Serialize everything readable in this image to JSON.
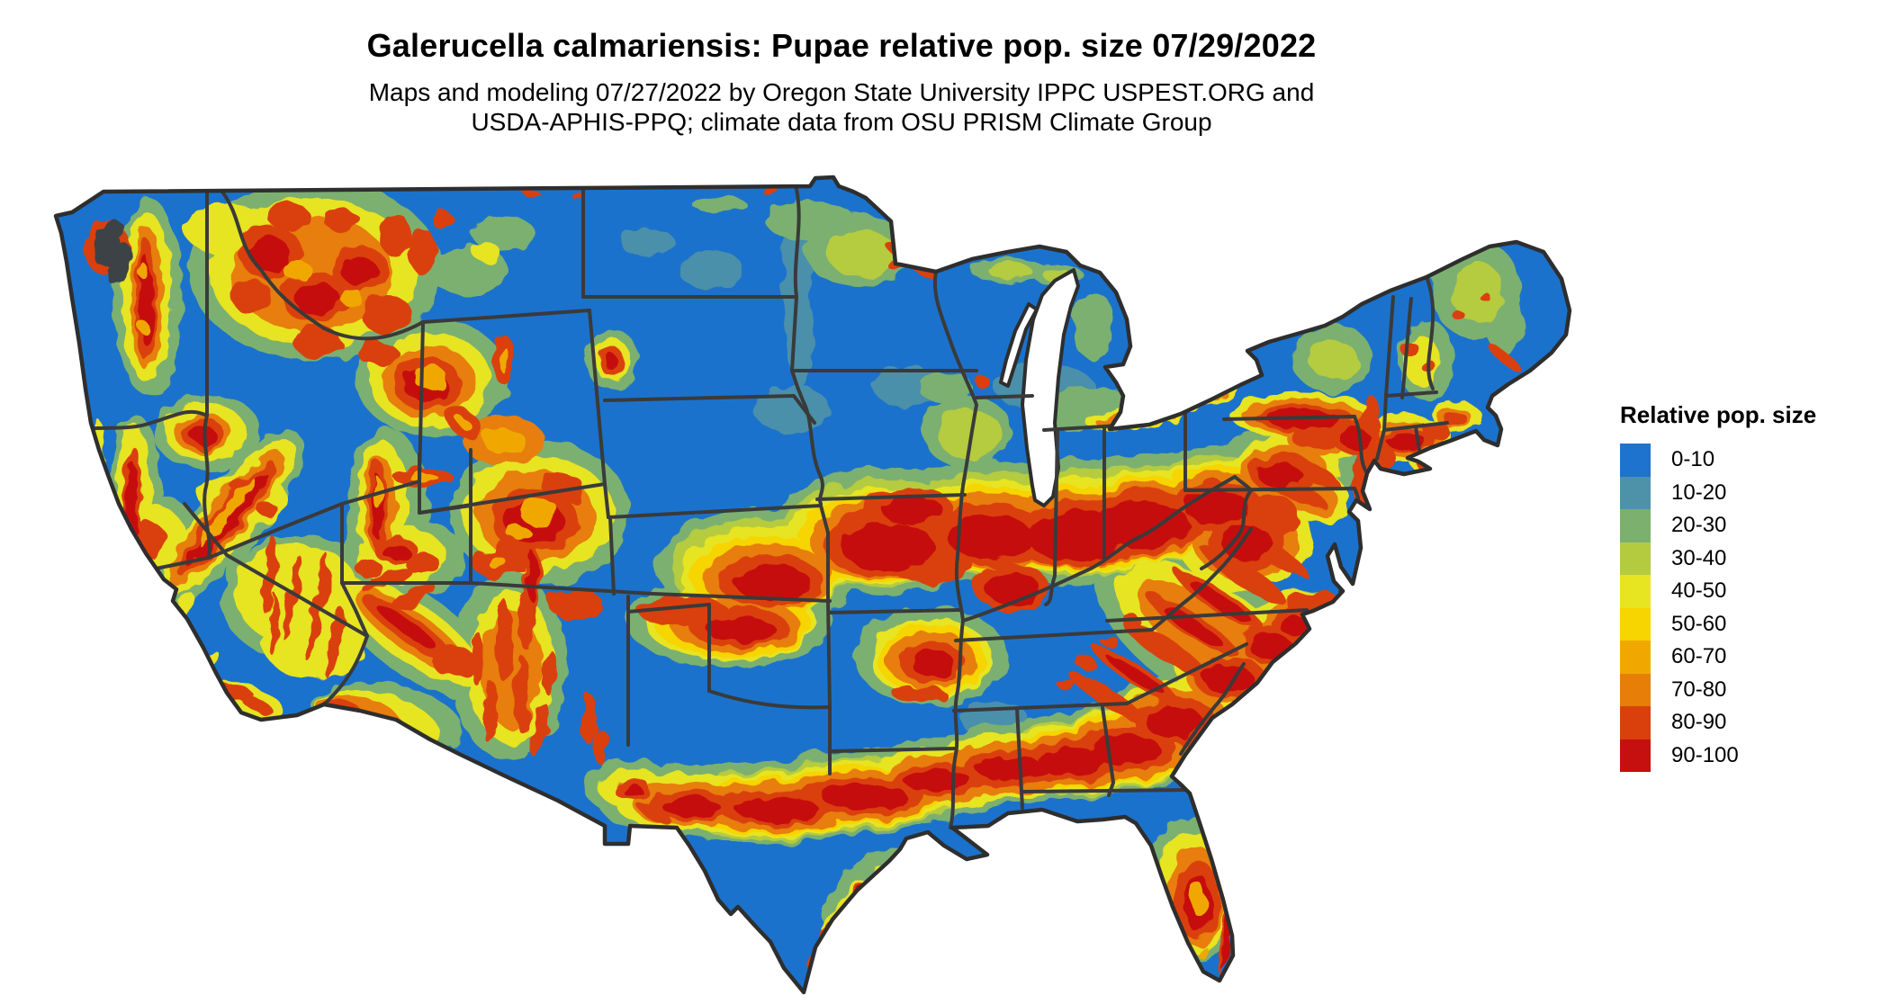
{
  "title": "Galerucella calmariensis: Pupae relative pop. size 07/29/2022",
  "subtitle_line1": "Maps and modeling 07/27/2022 by Oregon State University IPPC USPEST.ORG and",
  "subtitle_line2": "USDA-APHIS-PPQ; climate data from OSU PRISM Climate Group",
  "legend": {
    "title": "Relative pop. size",
    "items": [
      {
        "label": "0-10",
        "color": "#1e73cf"
      },
      {
        "label": "10-20",
        "color": "#4d92a9"
      },
      {
        "label": "20-30",
        "color": "#7bb06f"
      },
      {
        "label": "30-40",
        "color": "#b5cb3f"
      },
      {
        "label": "40-50",
        "color": "#e7e422"
      },
      {
        "label": "50-60",
        "color": "#f6d500"
      },
      {
        "label": "60-70",
        "color": "#f0a800"
      },
      {
        "label": "70-80",
        "color": "#e77e07"
      },
      {
        "label": "80-90",
        "color": "#da400c"
      },
      {
        "label": "90-100",
        "color": "#c60f0f"
      }
    ]
  },
  "map": {
    "region": "Contiguous United States",
    "kind": "raster choropleth of relative population size",
    "base_color": "#1b72cc",
    "state_border_color": "#3a3a3a",
    "outline_color": "#2e2e2e",
    "water_background": "#ffffff"
  }
}
